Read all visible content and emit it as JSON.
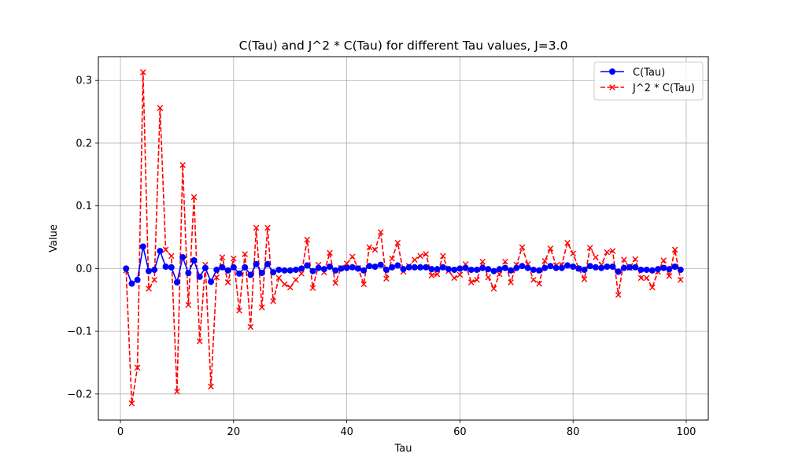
{
  "chart_data": {
    "type": "line",
    "title": "C(Tau) and J^2 * C(Tau) for different Tau values, J=3.0",
    "xlabel": "Tau",
    "ylabel": "Value",
    "xlim": [
      -3.9,
      103.9
    ],
    "ylim": [
      -0.2416,
      0.3379
    ],
    "xticks": [
      0,
      20,
      40,
      60,
      80,
      100
    ],
    "yticks": [
      -0.2,
      -0.1,
      0.0,
      0.1,
      0.2,
      0.3
    ],
    "xtick_labels": [
      "0",
      "20",
      "40",
      "60",
      "80",
      "100"
    ],
    "ytick_labels": [
      "−0.2",
      "−0.1",
      "0.0",
      "0.1",
      "0.2",
      "0.3"
    ],
    "grid": true,
    "legend_position": "top-right",
    "x": [
      1,
      2,
      3,
      4,
      5,
      6,
      7,
      8,
      9,
      10,
      11,
      12,
      13,
      14,
      15,
      16,
      17,
      18,
      19,
      20,
      21,
      22,
      23,
      24,
      25,
      26,
      27,
      28,
      29,
      30,
      31,
      32,
      33,
      34,
      35,
      36,
      37,
      38,
      39,
      40,
      41,
      42,
      43,
      44,
      45,
      46,
      47,
      48,
      49,
      50,
      51,
      52,
      53,
      54,
      55,
      56,
      57,
      58,
      59,
      60,
      61,
      62,
      63,
      64,
      65,
      66,
      67,
      68,
      69,
      70,
      71,
      72,
      73,
      74,
      75,
      76,
      77,
      78,
      79,
      80,
      81,
      82,
      83,
      84,
      85,
      86,
      87,
      88,
      89,
      90,
      91,
      92,
      93,
      94,
      95,
      96,
      97,
      98,
      99
    ],
    "series": [
      {
        "name": "C(Tau)",
        "color": "#0000ff",
        "linestyle": "solid",
        "marker": "circle",
        "values": [
          0,
          -0.024,
          -0.018,
          0.035,
          -0.004,
          -0.002,
          0.028,
          0.003,
          0.002,
          -0.022,
          0.018,
          -0.007,
          0.013,
          -0.013,
          0.001,
          -0.021,
          -0.002,
          0.002,
          -0.003,
          0.002,
          -0.008,
          0.002,
          -0.01,
          0.007,
          -0.007,
          0.007,
          -0.006,
          -0.002,
          -0.003,
          -0.003,
          -0.002,
          0.0,
          0.005,
          -0.004,
          0.001,
          -0.001,
          0.003,
          -0.003,
          0.0,
          0.001,
          0.002,
          0.0,
          -0.003,
          0.004,
          0.003,
          0.006,
          -0.002,
          0.002,
          0.005,
          -0.001,
          0.002,
          0.002,
          0.002,
          0.002,
          -0.001,
          -0.001,
          0.002,
          -0.001,
          -0.002,
          0.0,
          0.001,
          -0.002,
          -0.002,
          0.001,
          -0.001,
          -0.004,
          -0.001,
          0.001,
          -0.003,
          0.001,
          0.004,
          0.001,
          -0.002,
          -0.003,
          0.001,
          0.004,
          0.001,
          0.001,
          0.005,
          0.003,
          0.0,
          -0.002,
          0.004,
          0.002,
          0.001,
          0.003,
          0.003,
          -0.005,
          0.001,
          0.002,
          0.002,
          -0.002,
          -0.002,
          -0.003,
          -0.001,
          0.001,
          -0.001,
          0.003,
          -0.002
        ]
      },
      {
        "name": "J^2 * C(Tau)",
        "color": "#ff0000",
        "linestyle": "dashed",
        "marker": "x",
        "values": [
          -0.003,
          -0.215,
          -0.158,
          0.313,
          -0.032,
          -0.018,
          0.256,
          0.03,
          0.02,
          -0.196,
          0.165,
          -0.058,
          0.114,
          -0.116,
          0.006,
          -0.188,
          -0.014,
          0.018,
          -0.022,
          0.016,
          -0.067,
          0.023,
          -0.093,
          0.065,
          -0.062,
          0.065,
          -0.052,
          -0.015,
          -0.025,
          -0.03,
          -0.018,
          -0.008,
          0.046,
          -0.031,
          0.006,
          -0.006,
          0.025,
          -0.023,
          0.001,
          0.008,
          0.019,
          0.001,
          -0.025,
          0.034,
          0.03,
          0.058,
          -0.016,
          0.016,
          0.041,
          -0.005,
          0.004,
          0.014,
          0.02,
          0.023,
          -0.011,
          -0.009,
          0.02,
          -0.004,
          -0.015,
          -0.01,
          0.007,
          -0.022,
          -0.018,
          0.011,
          -0.014,
          -0.032,
          -0.009,
          0.011,
          -0.022,
          0.006,
          0.034,
          0.007,
          -0.018,
          -0.024,
          0.012,
          0.032,
          0.005,
          0.006,
          0.041,
          0.024,
          0.0,
          -0.017,
          0.033,
          0.018,
          0.006,
          0.026,
          0.028,
          -0.042,
          0.014,
          0.001,
          0.015,
          -0.015,
          -0.015,
          -0.03,
          -0.005,
          0.013,
          -0.012,
          0.03,
          -0.018
        ]
      }
    ]
  }
}
